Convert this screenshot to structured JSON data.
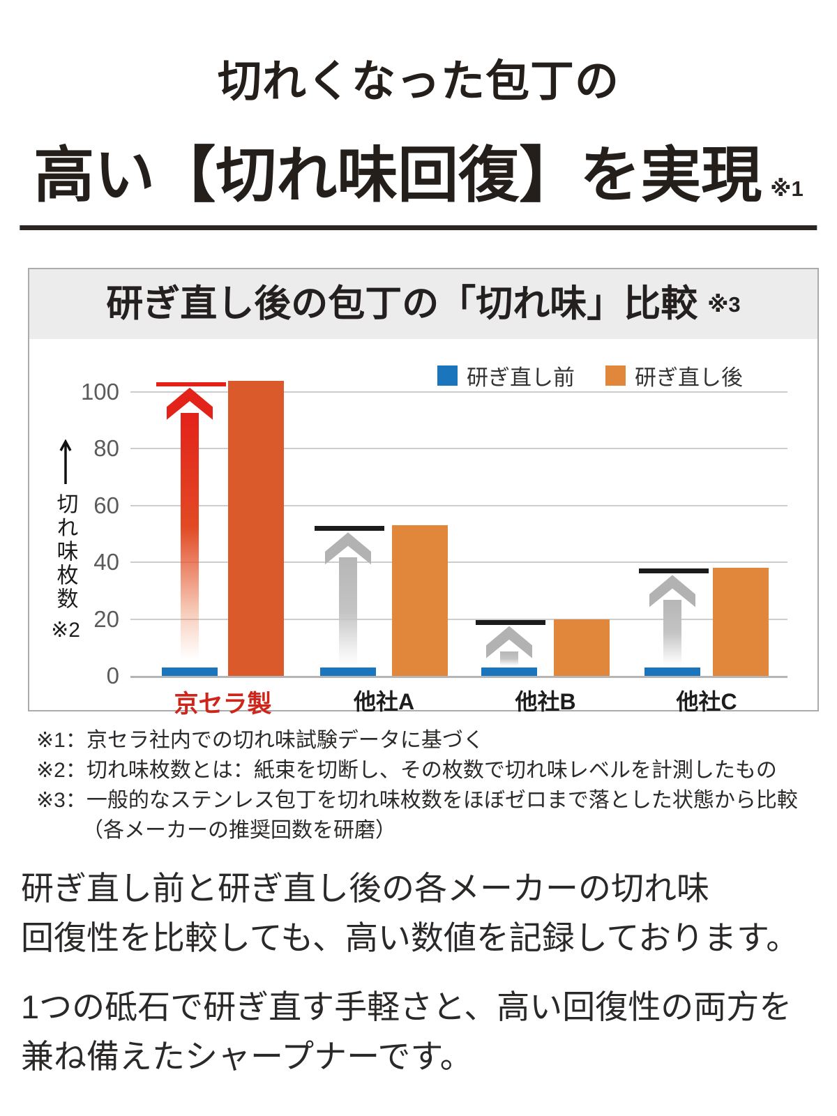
{
  "header": {
    "line1": "切れくなった包丁の",
    "line2": "高い【切れ味回復】を実現",
    "note": "※1"
  },
  "chart": {
    "title": "研ぎ直し後の包丁の「切れ味」比較",
    "title_note": "※3",
    "y_axis_label": "切れ味枚数",
    "y_axis_note": "※2"
  },
  "chart_data": {
    "type": "bar",
    "title": "研ぎ直し後の包丁の「切れ味」比較",
    "categories": [
      "京セラ製",
      "他社A",
      "他社B",
      "他社C"
    ],
    "series": [
      {
        "name": "研ぎ直し前",
        "color": "#1B75BC",
        "values": [
          3,
          3,
          3,
          3
        ]
      },
      {
        "name": "研ぎ直し後",
        "color": "#E0873C",
        "values": [
          104,
          53,
          20,
          38
        ]
      }
    ],
    "highlight": {
      "category": "京セラ製",
      "bar_color": "#DB5A2C",
      "label_color": "#CE241A",
      "arrow_color": "#E3221A"
    },
    "other_arrow_color": "#B2B2B2",
    "ylabel": "切れ味枚数",
    "yticks": [
      0,
      20,
      40,
      60,
      80,
      100
    ],
    "ylim": [
      0,
      110
    ],
    "grid": true,
    "legend_position": "top-right"
  },
  "footnotes": [
    {
      "text": "※1：京セラ社内での切れ味試験データに基づく",
      "indent": false
    },
    {
      "text": "※2：切れ味枚数とは：紙束を切断し、その枚数で切れ味レベルを計測したもの",
      "indent": false
    },
    {
      "text": "※3：一般的なステンレス包丁を切れ味枚数をほぼゼロまで落とした状態から比較",
      "indent": false
    },
    {
      "text": "（各メーカーの推奨回数を研磨）",
      "indent": true
    }
  ],
  "paragraphs": [
    {
      "lines": [
        "研ぎ直し前と研ぎ直し後の各メーカーの切れ味",
        "回復性を比較しても、高い数値を記録しております。"
      ]
    },
    {
      "lines": [
        "1つの砥石で研ぎ直す手軽さと、高い回復性の両方を",
        "兼ね備えたシャープナーです。"
      ]
    }
  ]
}
